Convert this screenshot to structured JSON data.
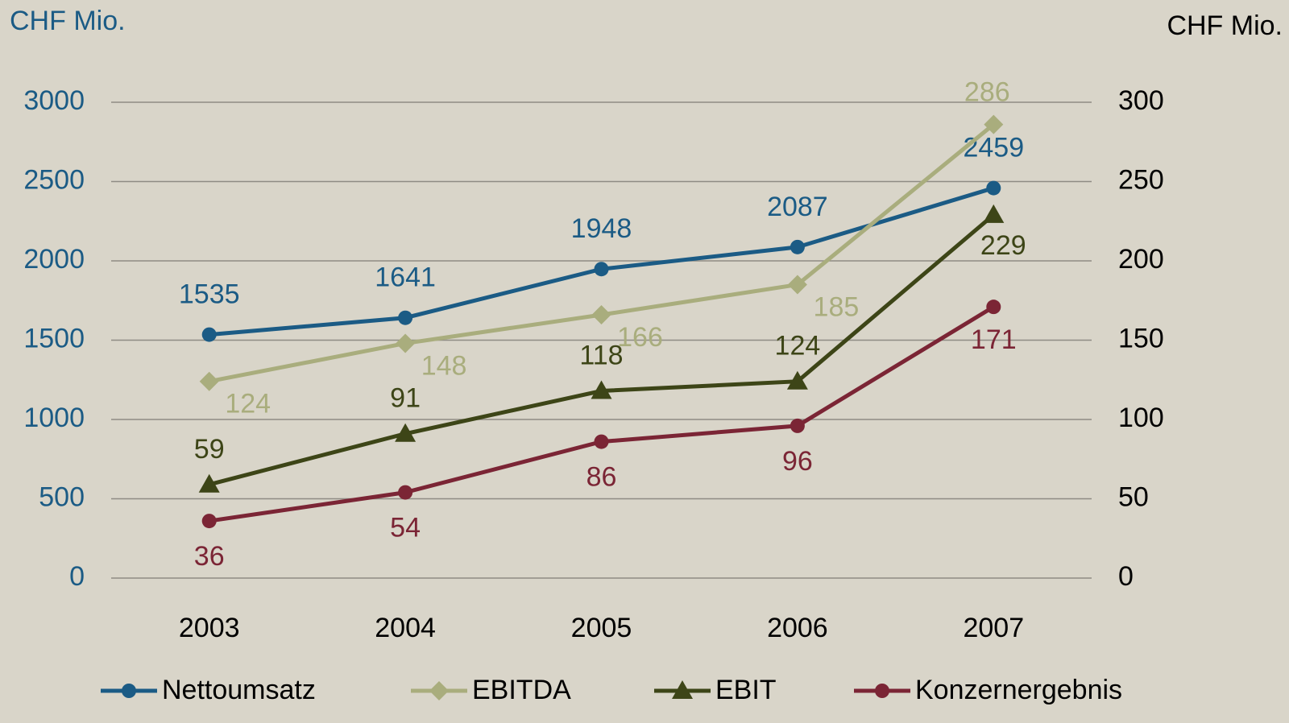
{
  "chart_data": {
    "type": "line",
    "y_label": "CHF Mio.",
    "y2_label": "CHF Mio.",
    "categories": [
      "2003",
      "2004",
      "2005",
      "2006",
      "2007"
    ],
    "ylim": [
      0,
      3000
    ],
    "yticks": [
      0,
      500,
      1000,
      1500,
      2000,
      2500,
      3000
    ],
    "y2lim": [
      0,
      300
    ],
    "y2ticks": [
      0,
      50,
      100,
      150,
      200,
      250,
      300
    ],
    "grid": true,
    "series": [
      {
        "name": "Nettoumsatz",
        "color": "#1b5b85",
        "marker": "circle",
        "values": [
          1535,
          1641,
          1948,
          2087,
          2459
        ]
      },
      {
        "name": "EBITDA",
        "color": "#a9ad7d",
        "marker": "diamond",
        "axis": "y2",
        "values": [
          124,
          148,
          166,
          185,
          286
        ]
      },
      {
        "name": "EBIT",
        "color": "#3d4517",
        "marker": "triangle",
        "axis": "y2",
        "values": [
          59,
          91,
          118,
          124,
          229
        ]
      },
      {
        "name": "Konzernergebnis",
        "color": "#7b2535",
        "marker": "circle",
        "axis": "y2",
        "values": [
          36,
          54,
          86,
          96,
          171
        ]
      }
    ]
  }
}
